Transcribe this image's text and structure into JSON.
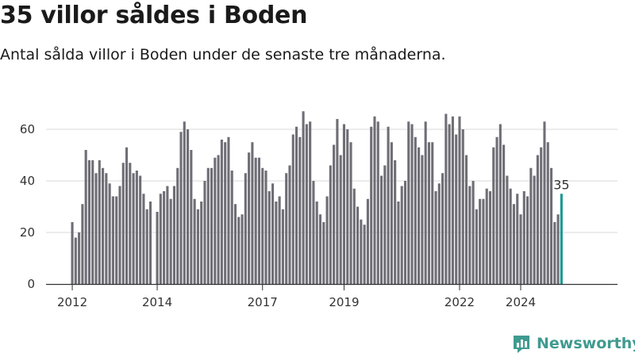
{
  "header": {
    "title": "35 villor såldes i Boden",
    "subtitle": "Antal sålda villor i Boden under de senaste tre månaderna."
  },
  "brand": {
    "name": "Newsworthy",
    "color": "#3f9a8f"
  },
  "colors": {
    "bar": "#6f6e76",
    "highlight": "#1a9a93",
    "grid": "#d9d9d9",
    "axis": "#333333"
  },
  "chart_data": {
    "type": "bar",
    "title": "35 villor såldes i Boden",
    "subtitle": "Antal sålda villor i Boden under de senaste tre månaderna.",
    "xlabel": "",
    "ylabel": "",
    "ylim": [
      0,
      70
    ],
    "yticks": [
      0,
      20,
      40,
      60
    ],
    "grid": true,
    "legend": "none",
    "x_start": "2012-01",
    "year_ticks": [
      "2012",
      "2014",
      "2017",
      "2019",
      "2022",
      "2024"
    ],
    "year_tick_index": [
      0,
      25,
      56,
      80,
      114,
      132
    ],
    "highlight": {
      "label": "35",
      "value": 35
    },
    "values": [
      24,
      18,
      20,
      31,
      52,
      48,
      48,
      43,
      48,
      45,
      43,
      39,
      34,
      34,
      38,
      47,
      53,
      47,
      43,
      44,
      42,
      35,
      29,
      32,
      0,
      28,
      35,
      36,
      38,
      33,
      38,
      45,
      59,
      63,
      60,
      52,
      33,
      29,
      32,
      40,
      45,
      45,
      49,
      50,
      56,
      55,
      57,
      44,
      31,
      26,
      27,
      43,
      51,
      55,
      49,
      49,
      45,
      44,
      36,
      39,
      32,
      34,
      29,
      43,
      46,
      58,
      61,
      57,
      67,
      62,
      63,
      40,
      32,
      27,
      24,
      34,
      46,
      54,
      64,
      50,
      62,
      60,
      55,
      37,
      30,
      25,
      23,
      33,
      61,
      65,
      63,
      42,
      46,
      61,
      55,
      48,
      32,
      38,
      40,
      63,
      62,
      57,
      53,
      50,
      63,
      55,
      55,
      36,
      39,
      43,
      66,
      62,
      65,
      58,
      65,
      60,
      50,
      38,
      40,
      29,
      33,
      33,
      37,
      36,
      53,
      57,
      62,
      54,
      42,
      37,
      31,
      35,
      27,
      36,
      34,
      45,
      42,
      50,
      53,
      63,
      55,
      45,
      24,
      27,
      35
    ]
  }
}
